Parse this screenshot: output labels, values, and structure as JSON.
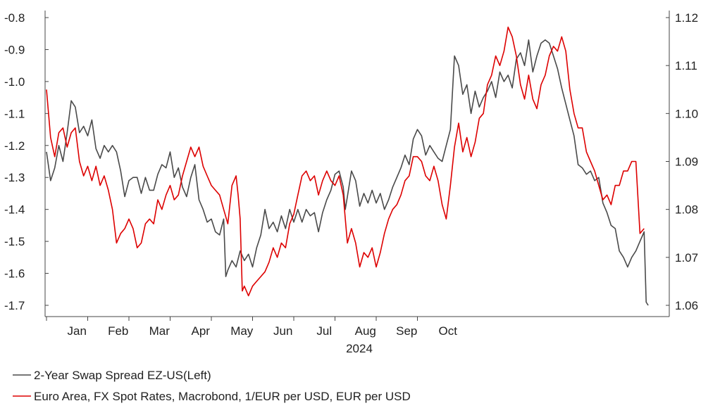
{
  "chart_data": {
    "type": "line",
    "year_label": "2024",
    "months": [
      "Jan",
      "Feb",
      "Mar",
      "Apr",
      "May",
      "Jun",
      "Jul",
      "Aug",
      "Sep",
      "Oct"
    ],
    "y_left": {
      "min": -1.7,
      "max": -0.8,
      "ticks": [
        "-0.8",
        "-0.9",
        "-1.0",
        "-1.1",
        "-1.2",
        "-1.3",
        "-1.4",
        "-1.5",
        "-1.6",
        "-1.7"
      ]
    },
    "y_right": {
      "min": 1.06,
      "max": 1.12,
      "ticks": [
        "1.12",
        "1.11",
        "1.10",
        "1.09",
        "1.08",
        "1.07",
        "1.06"
      ]
    },
    "series": [
      {
        "name": "2-Year Swap Spread EZ-US(Left)",
        "axis": "left",
        "color": "#4a4a4a",
        "points": [
          [
            0.0,
            -1.22
          ],
          [
            0.1,
            -1.31
          ],
          [
            0.2,
            -1.27
          ],
          [
            0.3,
            -1.2
          ],
          [
            0.4,
            -1.25
          ],
          [
            0.5,
            -1.16
          ],
          [
            0.6,
            -1.06
          ],
          [
            0.7,
            -1.08
          ],
          [
            0.8,
            -1.16
          ],
          [
            0.9,
            -1.14
          ],
          [
            1.0,
            -1.17
          ],
          [
            1.1,
            -1.12
          ],
          [
            1.2,
            -1.21
          ],
          [
            1.3,
            -1.24
          ],
          [
            1.4,
            -1.2
          ],
          [
            1.5,
            -1.22
          ],
          [
            1.6,
            -1.2
          ],
          [
            1.7,
            -1.22
          ],
          [
            1.8,
            -1.28
          ],
          [
            1.9,
            -1.36
          ],
          [
            2.0,
            -1.31
          ],
          [
            2.1,
            -1.3
          ],
          [
            2.2,
            -1.3
          ],
          [
            2.3,
            -1.35
          ],
          [
            2.4,
            -1.3
          ],
          [
            2.5,
            -1.34
          ],
          [
            2.6,
            -1.34
          ],
          [
            2.7,
            -1.29
          ],
          [
            2.8,
            -1.26
          ],
          [
            2.9,
            -1.27
          ],
          [
            3.0,
            -1.22
          ],
          [
            3.05,
            -1.26
          ],
          [
            3.1,
            -1.3
          ],
          [
            3.2,
            -1.27
          ],
          [
            3.3,
            -1.33
          ],
          [
            3.4,
            -1.36
          ],
          [
            3.5,
            -1.3
          ],
          [
            3.6,
            -1.26
          ],
          [
            3.7,
            -1.37
          ],
          [
            3.8,
            -1.4
          ],
          [
            3.9,
            -1.44
          ],
          [
            4.0,
            -1.43
          ],
          [
            4.1,
            -1.47
          ],
          [
            4.2,
            -1.48
          ],
          [
            4.3,
            -1.43
          ],
          [
            4.35,
            -1.61
          ],
          [
            4.4,
            -1.59
          ],
          [
            4.5,
            -1.56
          ],
          [
            4.6,
            -1.58
          ],
          [
            4.7,
            -1.53
          ],
          [
            4.8,
            -1.56
          ],
          [
            4.9,
            -1.54
          ],
          [
            5.0,
            -1.58
          ],
          [
            5.1,
            -1.52
          ],
          [
            5.2,
            -1.48
          ],
          [
            5.3,
            -1.4
          ],
          [
            5.4,
            -1.46
          ],
          [
            5.5,
            -1.44
          ],
          [
            5.6,
            -1.47
          ],
          [
            5.7,
            -1.42
          ],
          [
            5.8,
            -1.46
          ],
          [
            5.9,
            -1.4
          ],
          [
            6.0,
            -1.44
          ],
          [
            6.1,
            -1.4
          ],
          [
            6.2,
            -1.44
          ],
          [
            6.3,
            -1.4
          ],
          [
            6.4,
            -1.42
          ],
          [
            6.5,
            -1.41
          ],
          [
            6.6,
            -1.47
          ],
          [
            6.7,
            -1.41
          ],
          [
            6.8,
            -1.37
          ],
          [
            6.9,
            -1.34
          ],
          [
            7.0,
            -1.29
          ],
          [
            7.1,
            -1.28
          ],
          [
            7.2,
            -1.33
          ],
          [
            7.25,
            -1.4
          ],
          [
            7.3,
            -1.36
          ],
          [
            7.4,
            -1.28
          ],
          [
            7.5,
            -1.31
          ],
          [
            7.6,
            -1.39
          ],
          [
            7.7,
            -1.35
          ],
          [
            7.8,
            -1.38
          ],
          [
            7.9,
            -1.34
          ],
          [
            8.0,
            -1.38
          ],
          [
            8.1,
            -1.35
          ],
          [
            8.2,
            -1.4
          ],
          [
            8.3,
            -1.37
          ],
          [
            8.4,
            -1.33
          ],
          [
            8.5,
            -1.3
          ],
          [
            8.6,
            -1.27
          ],
          [
            8.7,
            -1.23
          ],
          [
            8.8,
            -1.26
          ],
          [
            8.9,
            -1.18
          ],
          [
            9.0,
            -1.15
          ],
          [
            9.1,
            -1.17
          ],
          [
            9.2,
            -1.23
          ],
          [
            9.3,
            -1.2
          ],
          [
            9.4,
            -1.22
          ],
          [
            9.5,
            -1.24
          ],
          [
            9.6,
            -1.25
          ],
          [
            9.7,
            -1.2
          ],
          [
            9.8,
            -1.15
          ],
          [
            9.9,
            -0.92
          ],
          [
            10.0,
            -0.95
          ],
          [
            10.1,
            -1.04
          ],
          [
            10.2,
            -1.01
          ],
          [
            10.3,
            -1.1
          ],
          [
            10.4,
            -1.03
          ],
          [
            10.5,
            -1.08
          ],
          [
            10.6,
            -1.05
          ],
          [
            10.7,
            -1.03
          ],
          [
            10.8,
            -1.0
          ],
          [
            10.9,
            -1.05
          ],
          [
            11.0,
            -0.97
          ],
          [
            11.1,
            -1.0
          ],
          [
            11.2,
            -0.98
          ],
          [
            11.3,
            -1.02
          ],
          [
            11.4,
            -0.93
          ],
          [
            11.5,
            -0.91
          ],
          [
            11.6,
            -0.95
          ],
          [
            11.7,
            -0.87
          ],
          [
            11.8,
            -0.97
          ],
          [
            11.9,
            -0.92
          ],
          [
            12.0,
            -0.88
          ],
          [
            12.1,
            -0.87
          ],
          [
            12.2,
            -0.88
          ],
          [
            12.3,
            -0.92
          ],
          [
            12.4,
            -0.96
          ],
          [
            12.5,
            -1.02
          ],
          [
            12.6,
            -1.07
          ],
          [
            12.7,
            -1.12
          ],
          [
            12.8,
            -1.17
          ],
          [
            12.9,
            -1.26
          ],
          [
            13.0,
            -1.27
          ],
          [
            13.1,
            -1.29
          ],
          [
            13.2,
            -1.28
          ],
          [
            13.3,
            -1.31
          ],
          [
            13.4,
            -1.3
          ],
          [
            13.5,
            -1.38
          ],
          [
            13.6,
            -1.41
          ],
          [
            13.7,
            -1.45
          ],
          [
            13.8,
            -1.46
          ],
          [
            13.9,
            -1.53
          ],
          [
            14.0,
            -1.55
          ],
          [
            14.1,
            -1.58
          ],
          [
            14.2,
            -1.55
          ],
          [
            14.3,
            -1.53
          ],
          [
            14.4,
            -1.5
          ],
          [
            14.5,
            -1.47
          ],
          [
            14.55,
            -1.69
          ],
          [
            14.6,
            -1.7
          ]
        ]
      },
      {
        "name": "Euro Area, FX Spot Rates, Macrobond, 1/EUR per USD, EUR per USD",
        "axis": "right",
        "color": "#dd0000",
        "points": [
          [
            0.0,
            1.105
          ],
          [
            0.1,
            1.095
          ],
          [
            0.2,
            1.091
          ],
          [
            0.3,
            1.096
          ],
          [
            0.4,
            1.097
          ],
          [
            0.5,
            1.093
          ],
          [
            0.6,
            1.096
          ],
          [
            0.7,
            1.097
          ],
          [
            0.8,
            1.09
          ],
          [
            0.9,
            1.087
          ],
          [
            1.0,
            1.089
          ],
          [
            1.1,
            1.086
          ],
          [
            1.2,
            1.089
          ],
          [
            1.3,
            1.085
          ],
          [
            1.4,
            1.087
          ],
          [
            1.5,
            1.084
          ],
          [
            1.6,
            1.08
          ],
          [
            1.7,
            1.073
          ],
          [
            1.8,
            1.075
          ],
          [
            1.9,
            1.076
          ],
          [
            2.0,
            1.078
          ],
          [
            2.1,
            1.076
          ],
          [
            2.2,
            1.072
          ],
          [
            2.3,
            1.073
          ],
          [
            2.4,
            1.077
          ],
          [
            2.5,
            1.078
          ],
          [
            2.6,
            1.077
          ],
          [
            2.7,
            1.082
          ],
          [
            2.8,
            1.08
          ],
          [
            2.9,
            1.083
          ],
          [
            3.0,
            1.085
          ],
          [
            3.1,
            1.082
          ],
          [
            3.2,
            1.083
          ],
          [
            3.3,
            1.087
          ],
          [
            3.4,
            1.09
          ],
          [
            3.5,
            1.093
          ],
          [
            3.6,
            1.091
          ],
          [
            3.7,
            1.093
          ],
          [
            3.8,
            1.089
          ],
          [
            3.9,
            1.087
          ],
          [
            4.0,
            1.085
          ],
          [
            4.1,
            1.084
          ],
          [
            4.2,
            1.083
          ],
          [
            4.3,
            1.08
          ],
          [
            4.4,
            1.077
          ],
          [
            4.5,
            1.085
          ],
          [
            4.6,
            1.087
          ],
          [
            4.65,
            1.083
          ],
          [
            4.7,
            1.078
          ],
          [
            4.75,
            1.063
          ],
          [
            4.8,
            1.064
          ],
          [
            4.9,
            1.062
          ],
          [
            5.0,
            1.064
          ],
          [
            5.1,
            1.065
          ],
          [
            5.2,
            1.066
          ],
          [
            5.3,
            1.067
          ],
          [
            5.4,
            1.069
          ],
          [
            5.5,
            1.072
          ],
          [
            5.6,
            1.07
          ],
          [
            5.7,
            1.073
          ],
          [
            5.8,
            1.072
          ],
          [
            5.9,
            1.077
          ],
          [
            6.0,
            1.079
          ],
          [
            6.1,
            1.083
          ],
          [
            6.2,
            1.087
          ],
          [
            6.3,
            1.088
          ],
          [
            6.4,
            1.086
          ],
          [
            6.5,
            1.087
          ],
          [
            6.6,
            1.083
          ],
          [
            6.7,
            1.086
          ],
          [
            6.8,
            1.088
          ],
          [
            6.9,
            1.086
          ],
          [
            7.0,
            1.085
          ],
          [
            7.1,
            1.087
          ],
          [
            7.2,
            1.083
          ],
          [
            7.3,
            1.073
          ],
          [
            7.4,
            1.076
          ],
          [
            7.5,
            1.073
          ],
          [
            7.6,
            1.068
          ],
          [
            7.7,
            1.071
          ],
          [
            7.8,
            1.07
          ],
          [
            7.9,
            1.072
          ],
          [
            8.0,
            1.068
          ],
          [
            8.1,
            1.071
          ],
          [
            8.2,
            1.075
          ],
          [
            8.3,
            1.078
          ],
          [
            8.4,
            1.08
          ],
          [
            8.5,
            1.081
          ],
          [
            8.6,
            1.083
          ],
          [
            8.7,
            1.086
          ],
          [
            8.8,
            1.087
          ],
          [
            8.9,
            1.091
          ],
          [
            9.0,
            1.091
          ],
          [
            9.1,
            1.09
          ],
          [
            9.2,
            1.087
          ],
          [
            9.3,
            1.086
          ],
          [
            9.4,
            1.089
          ],
          [
            9.5,
            1.086
          ],
          [
            9.6,
            1.081
          ],
          [
            9.7,
            1.078
          ],
          [
            9.8,
            1.085
          ],
          [
            9.9,
            1.093
          ],
          [
            10.0,
            1.098
          ],
          [
            10.1,
            1.092
          ],
          [
            10.2,
            1.095
          ],
          [
            10.3,
            1.091
          ],
          [
            10.4,
            1.094
          ],
          [
            10.5,
            1.099
          ],
          [
            10.6,
            1.1
          ],
          [
            10.7,
            1.106
          ],
          [
            10.8,
            1.108
          ],
          [
            10.9,
            1.112
          ],
          [
            11.0,
            1.11
          ],
          [
            11.1,
            1.113
          ],
          [
            11.2,
            1.118
          ],
          [
            11.3,
            1.116
          ],
          [
            11.4,
            1.112
          ],
          [
            11.5,
            1.106
          ],
          [
            11.6,
            1.103
          ],
          [
            11.7,
            1.108
          ],
          [
            11.8,
            1.103
          ],
          [
            11.9,
            1.101
          ],
          [
            12.0,
            1.106
          ],
          [
            12.1,
            1.108
          ],
          [
            12.2,
            1.112
          ],
          [
            12.3,
            1.114
          ],
          [
            12.4,
            1.113
          ],
          [
            12.5,
            1.116
          ],
          [
            12.6,
            1.113
          ],
          [
            12.7,
            1.105
          ],
          [
            12.8,
            1.1
          ],
          [
            12.9,
            1.097
          ],
          [
            13.0,
            1.097
          ],
          [
            13.1,
            1.092
          ],
          [
            13.2,
            1.09
          ],
          [
            13.3,
            1.088
          ],
          [
            13.4,
            1.085
          ],
          [
            13.5,
            1.082
          ],
          [
            13.6,
            1.083
          ],
          [
            13.7,
            1.081
          ],
          [
            13.8,
            1.085
          ],
          [
            13.9,
            1.085
          ],
          [
            14.0,
            1.088
          ],
          [
            14.1,
            1.088
          ],
          [
            14.2,
            1.09
          ],
          [
            14.3,
            1.09
          ],
          [
            14.4,
            1.075
          ],
          [
            14.5,
            1.076
          ]
        ]
      }
    ],
    "legend_position": "bottom-left"
  }
}
